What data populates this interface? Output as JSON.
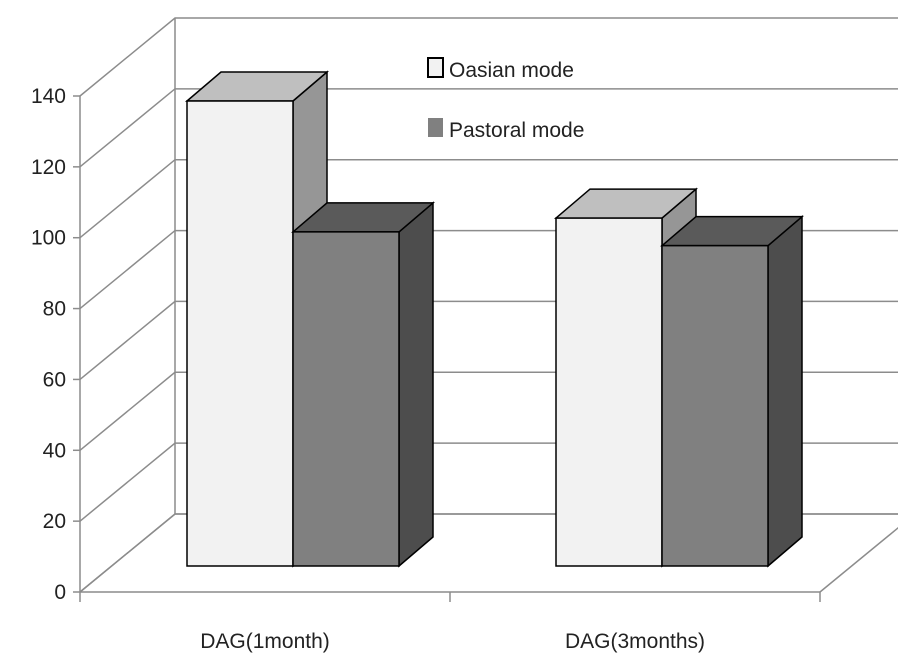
{
  "chart_data": {
    "type": "bar",
    "style": "3d-clustered-column",
    "categories": [
      "DAG(1month)",
      "DAG(3months)"
    ],
    "series": [
      {
        "name": "Oasian mode",
        "values": [
          135,
          101
        ]
      },
      {
        "name": "Pastoral mode",
        "values": [
          97,
          93
        ]
      }
    ],
    "title": "",
    "xlabel": "",
    "ylabel": "",
    "ylim": [
      0,
      140
    ],
    "yticks": [
      "0",
      "20",
      "40",
      "60",
      "80",
      "100",
      "120",
      "140"
    ],
    "grid": true,
    "legend_position": "top-right",
    "colors": {
      "Oasian mode": {
        "front": "#f2f2f2",
        "top": "#bfbfbf",
        "side": "#969696"
      },
      "Pastoral mode": {
        "front": "#808080",
        "top": "#5a5a5a",
        "side": "#4d4d4d"
      },
      "grid": "#8c8c8c"
    }
  }
}
